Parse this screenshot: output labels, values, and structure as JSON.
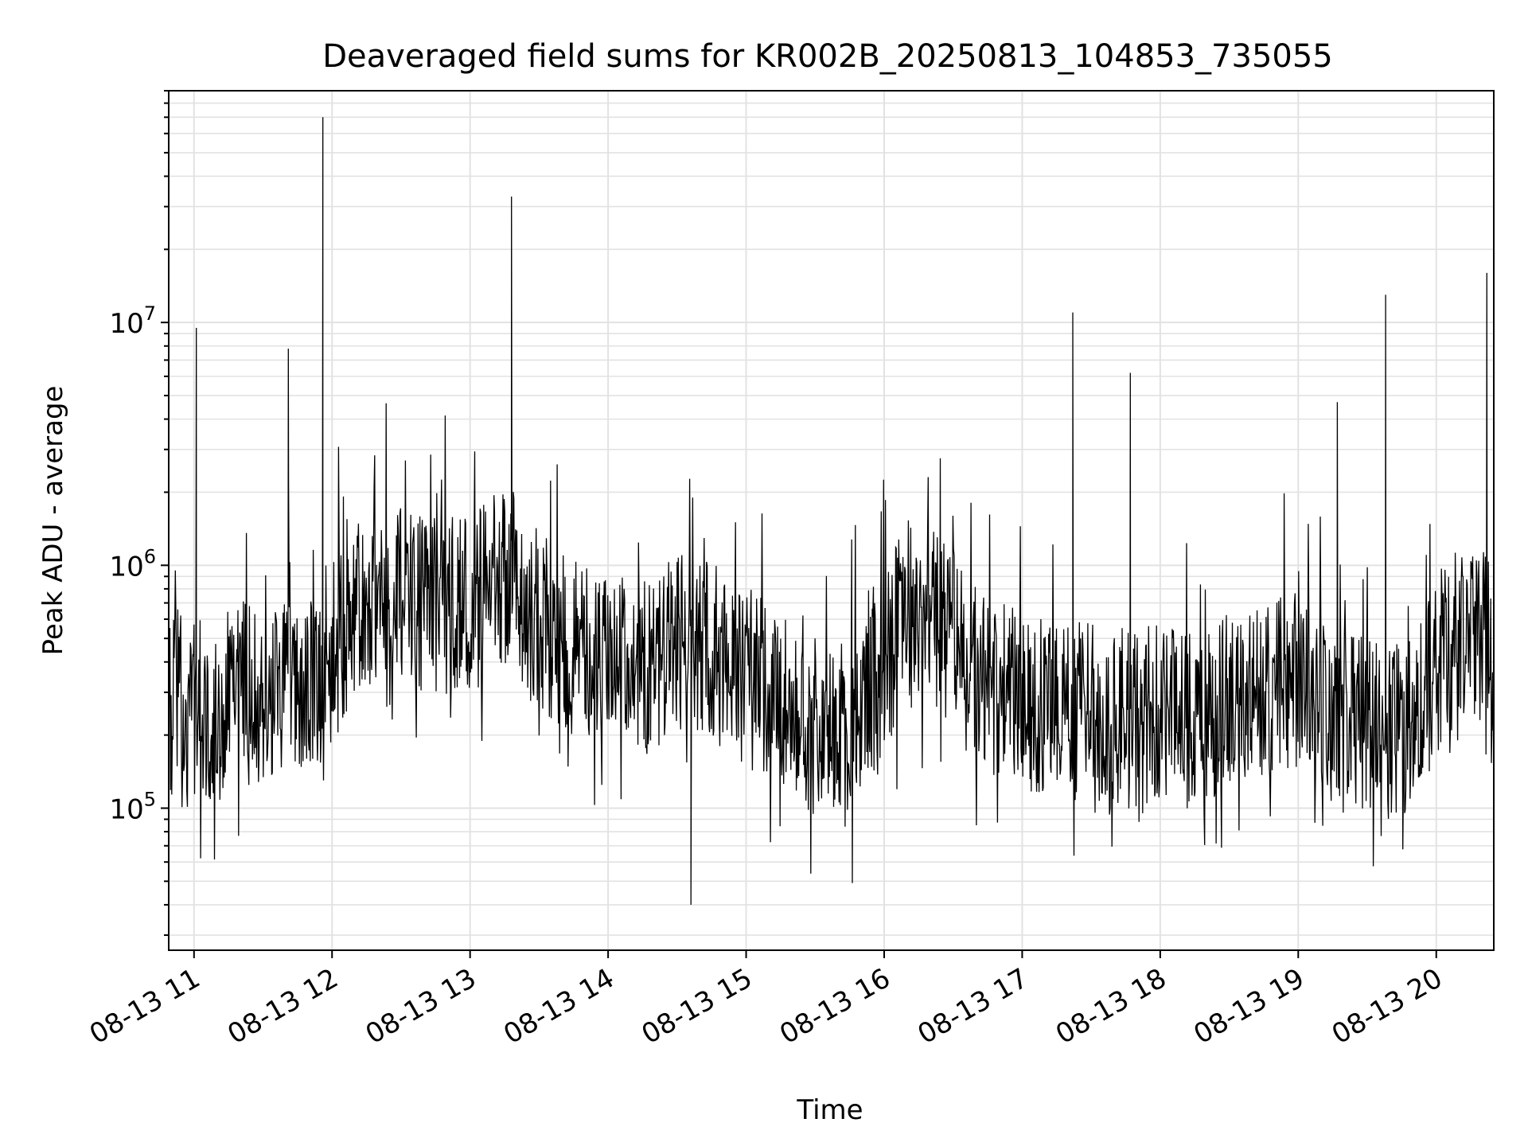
{
  "chart_data": {
    "type": "line",
    "title": "Deaveraged field sums for KR002B_20250813_104853_735055",
    "xlabel": "Time",
    "ylabel": "Peak ADU - average",
    "yscale": "log",
    "ylim": [
      26000,
      90000000
    ],
    "xlim": [
      "2025-08-13 10:49",
      "2025-08-13 20:25"
    ],
    "grid": true,
    "x_ticks": [
      {
        "t": "2025-08-13 11:00",
        "label": "08-13 11"
      },
      {
        "t": "2025-08-13 12:00",
        "label": "08-13 12"
      },
      {
        "t": "2025-08-13 13:00",
        "label": "08-13 13"
      },
      {
        "t": "2025-08-13 14:00",
        "label": "08-13 14"
      },
      {
        "t": "2025-08-13 15:00",
        "label": "08-13 15"
      },
      {
        "t": "2025-08-13 16:00",
        "label": "08-13 16"
      },
      {
        "t": "2025-08-13 17:00",
        "label": "08-13 17"
      },
      {
        "t": "2025-08-13 18:00",
        "label": "08-13 18"
      },
      {
        "t": "2025-08-13 19:00",
        "label": "08-13 19"
      },
      {
        "t": "2025-08-13 20:00",
        "label": "08-13 20"
      }
    ],
    "y_ticks": [
      {
        "value": 100000,
        "base": "10",
        "exp": "5"
      },
      {
        "value": 1000000,
        "base": "10",
        "exp": "6"
      },
      {
        "value": 10000000,
        "base": "10",
        "exp": "7"
      }
    ],
    "series": [
      {
        "color": "#000000",
        "x": [
          "2025-08-13 10:49",
          "2025-08-13 10:55",
          "2025-08-13 10:58",
          "2025-08-13 11:00",
          "2025-08-13 11:01",
          "2025-08-13 11:02",
          "2025-08-13 11:05",
          "2025-08-13 11:10",
          "2025-08-13 11:15",
          "2025-08-13 11:20",
          "2025-08-13 11:26",
          "2025-08-13 11:30",
          "2025-08-13 11:35",
          "2025-08-13 11:39",
          "2025-08-13 11:41",
          "2025-08-13 11:45",
          "2025-08-13 11:50",
          "2025-08-13 11:54",
          "2025-08-13 11:56",
          "2025-08-13 12:00",
          "2025-08-13 12:10",
          "2025-08-13 12:20",
          "2025-08-13 12:30",
          "2025-08-13 12:40",
          "2025-08-13 12:50",
          "2025-08-13 13:00",
          "2025-08-13 13:10",
          "2025-08-13 13:16",
          "2025-08-13 13:18",
          "2025-08-13 13:20",
          "2025-08-13 13:22",
          "2025-08-13 13:30",
          "2025-08-13 13:40",
          "2025-08-13 13:50",
          "2025-08-13 14:00",
          "2025-08-13 14:10",
          "2025-08-13 14:20",
          "2025-08-13 14:30",
          "2025-08-13 14:36",
          "2025-08-13 14:40",
          "2025-08-13 14:50",
          "2025-08-13 15:00",
          "2025-08-13 15:10",
          "2025-08-13 15:20",
          "2025-08-13 15:30",
          "2025-08-13 15:40",
          "2025-08-13 15:50",
          "2025-08-13 16:00",
          "2025-08-13 16:10",
          "2025-08-13 16:20",
          "2025-08-13 16:30",
          "2025-08-13 16:40",
          "2025-08-13 16:50",
          "2025-08-13 17:00",
          "2025-08-13 17:10",
          "2025-08-13 17:20",
          "2025-08-13 17:22",
          "2025-08-13 17:30",
          "2025-08-13 17:40",
          "2025-08-13 17:47",
          "2025-08-13 17:50",
          "2025-08-13 18:00",
          "2025-08-13 18:10",
          "2025-08-13 18:20",
          "2025-08-13 18:30",
          "2025-08-13 18:40",
          "2025-08-13 18:50",
          "2025-08-13 19:00",
          "2025-08-13 19:10",
          "2025-08-13 19:17",
          "2025-08-13 19:20",
          "2025-08-13 19:30",
          "2025-08-13 19:38",
          "2025-08-13 19:40",
          "2025-08-13 19:50",
          "2025-08-13 20:00",
          "2025-08-13 20:10",
          "2025-08-13 20:20",
          "2025-08-13 20:22",
          "2025-08-13 20:25"
        ],
        "y": [
          250000,
          300000,
          220000,
          300000,
          9500000,
          280000,
          250000,
          240000,
          300000,
          320000,
          280000,
          310000,
          280000,
          300000,
          7800000,
          350000,
          300000,
          340000,
          70000000,
          420000,
          700000,
          800000,
          750000,
          680000,
          700000,
          650000,
          850000,
          900000,
          33000000,
          1000000,
          700000,
          600000,
          500000,
          420000,
          380000,
          400000,
          350000,
          500000,
          40000,
          450000,
          420000,
          350000,
          300000,
          250000,
          220000,
          210000,
          220000,
          380000,
          700000,
          600000,
          500000,
          350000,
          300000,
          280000,
          270000,
          250000,
          11000000,
          250000,
          230000,
          6200000,
          240000,
          250000,
          230000,
          220000,
          280000,
          300000,
          320000,
          340000,
          260000,
          4700000,
          220000,
          230000,
          13000000,
          210000,
          220000,
          400000,
          500000,
          550000,
          16000000,
          420000
        ]
      }
    ]
  }
}
